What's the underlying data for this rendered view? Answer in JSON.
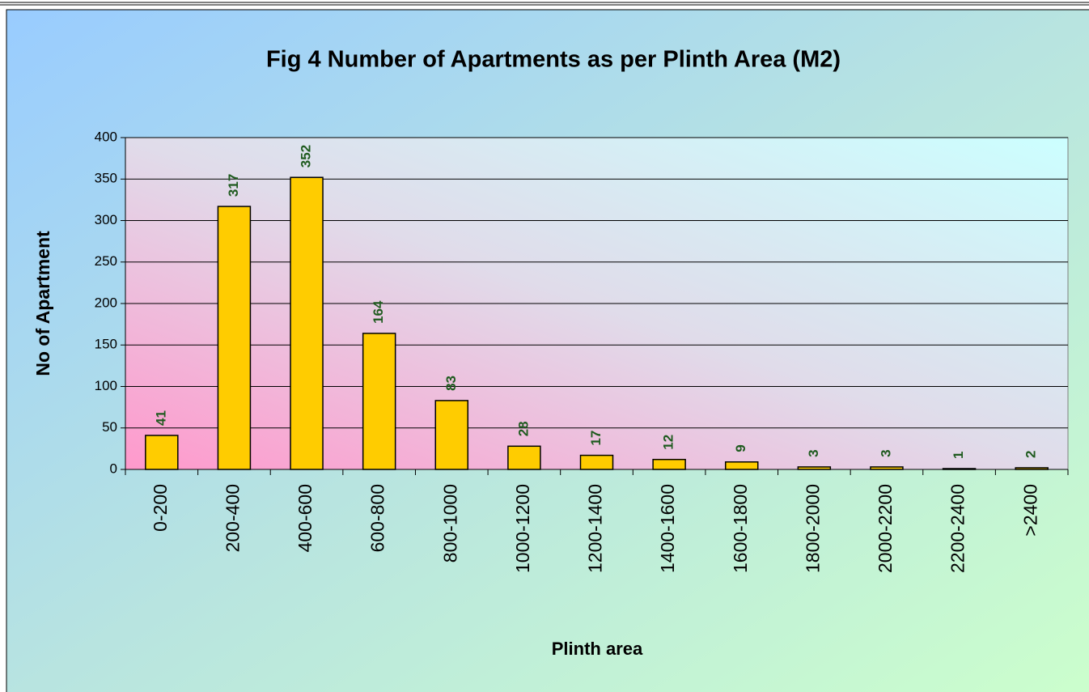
{
  "chart_data": {
    "type": "bar",
    "title": "Fig 4  Number of Apartments as per Plinth Area (M2)",
    "xlabel": "Plinth area",
    "ylabel": "No of Apartment",
    "categories": [
      "0-200",
      "200-400",
      "400-600",
      "600-800",
      "800-1000",
      "1000-1200",
      "1200-1400",
      "1400-1600",
      "1600-1800",
      "1800-2000",
      "2000-2200",
      "2200-2400",
      ">2400"
    ],
    "values": [
      41,
      317,
      352,
      164,
      83,
      28,
      17,
      12,
      9,
      3,
      3,
      1,
      2
    ],
    "color": "#ffcc00",
    "label_color": "#1e5a1e",
    "ylim": [
      0,
      400
    ],
    "yticks": [
      0,
      50,
      100,
      150,
      200,
      250,
      300,
      350,
      400
    ],
    "grid": true
  }
}
